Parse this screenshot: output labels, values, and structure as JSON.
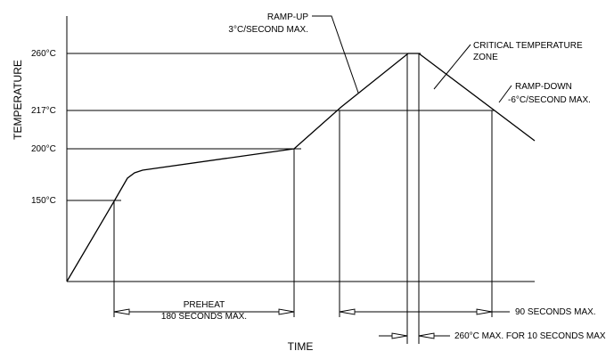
{
  "axes": {
    "y_title": "TEMPERATURE",
    "x_title": "TIME"
  },
  "temperature_ticks": [
    "260°C",
    "217°C",
    "200°C",
    "150°C"
  ],
  "annotations": {
    "ramp_up": [
      "RAMP-UP",
      "3°C/SECOND MAX."
    ],
    "critical_zone": [
      "CRITICAL TEMPERATURE",
      "ZONE"
    ],
    "ramp_down": [
      "RAMP-DOWN",
      "-6°C/SECOND  MAX."
    ],
    "preheat": [
      "PREHEAT",
      "180 SECONDS MAX."
    ],
    "above_217": "90 SECONDS MAX.",
    "peak_time": "260°C MAX. FOR 10 SECONDS MAX"
  },
  "profile": {
    "phases": [
      {
        "name": "PREHEAT",
        "from_temp_c": 150,
        "to_temp_c": 200,
        "max_seconds": 180
      },
      {
        "name": "RAMP-UP",
        "max_rate_c_per_s": 3
      },
      {
        "name": "ABOVE 217°C",
        "max_seconds": 90
      },
      {
        "name": "PEAK",
        "max_temp_c": 260,
        "max_seconds": 10
      },
      {
        "name": "RAMP-DOWN",
        "max_rate_c_per_s": -6
      }
    ]
  }
}
